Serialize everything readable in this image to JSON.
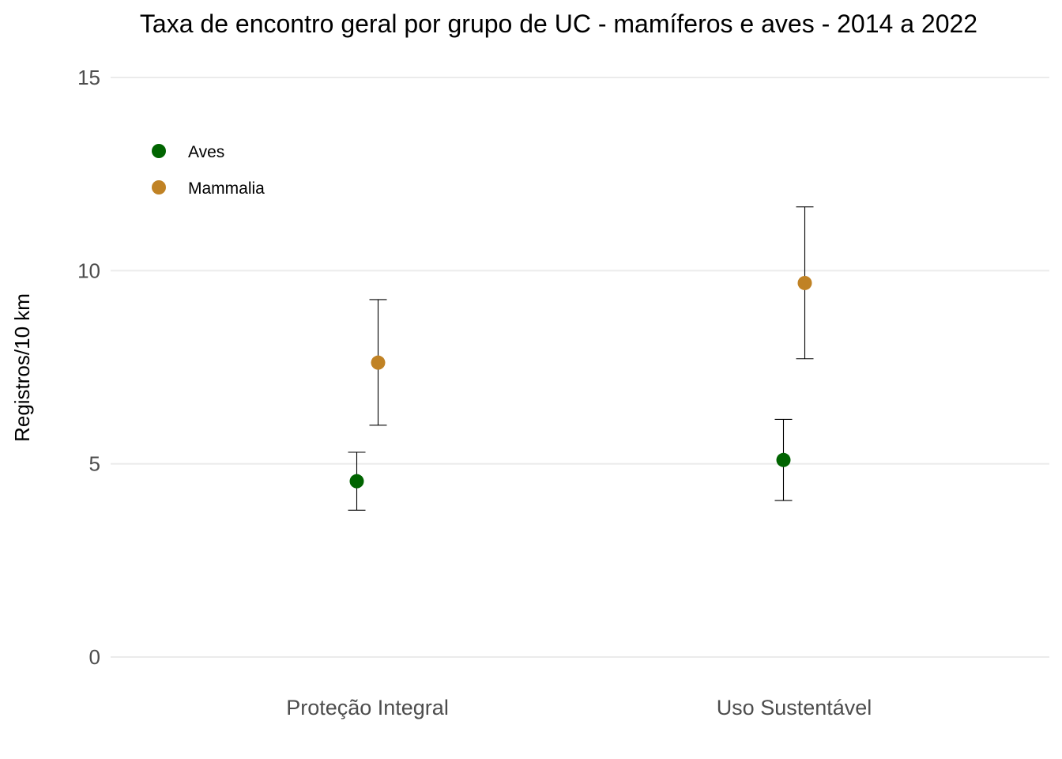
{
  "chart_data": {
    "type": "scatter",
    "title": "Taxa de encontro geral por grupo de UC - mamíferos e aves - 2014 a 2022",
    "xlabel": "",
    "ylabel": "Registros/10 km",
    "categories": [
      "Proteção Integral",
      "Uso Sustentável"
    ],
    "ylim": [
      0,
      15
    ],
    "yticks": [
      0,
      5,
      10,
      15
    ],
    "grid": true,
    "legend_position": "top-left",
    "series": [
      {
        "name": "Aves",
        "color": "#006400",
        "values": [
          4.55,
          5.1
        ],
        "lower": [
          3.8,
          4.05
        ],
        "upper": [
          5.3,
          6.15
        ]
      },
      {
        "name": "Mammalia",
        "color": "#C08224",
        "values": [
          7.62,
          9.68
        ],
        "lower": [
          6.0,
          7.72
        ],
        "upper": [
          9.25,
          11.65
        ]
      }
    ]
  }
}
